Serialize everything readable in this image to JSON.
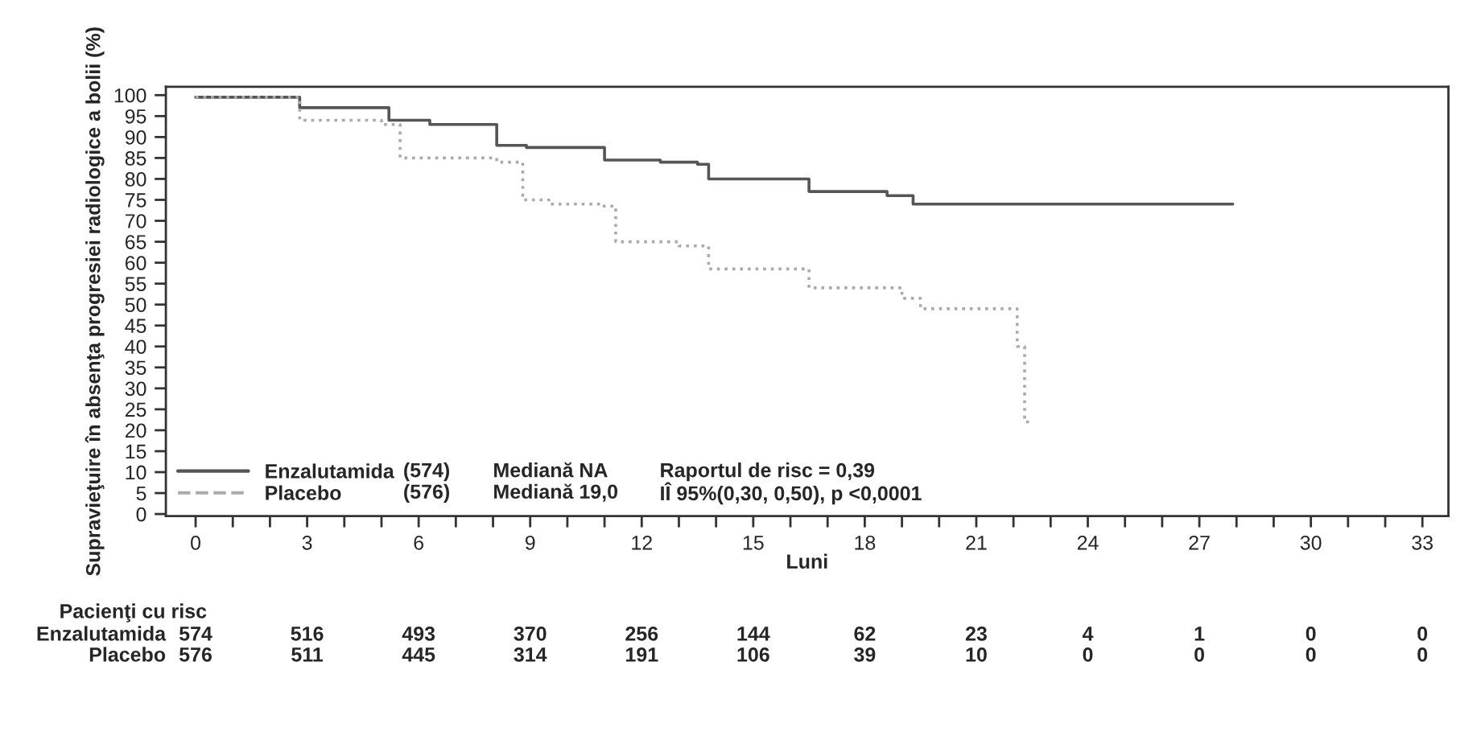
{
  "chart_data": {
    "type": "step",
    "ylabel": "Supravieţuire în absenţa progresiei radiologice a bolii (%)",
    "xlabel": "Luni",
    "xlim": [
      -0.8,
      33.7
    ],
    "ylim": [
      -0.5,
      102
    ],
    "xticks": [
      0,
      {
        "value": 1,
        "label": null
      },
      {
        "value": 2,
        "label": null
      },
      3,
      {
        "value": 4,
        "label": null
      },
      {
        "value": 5,
        "label": null
      },
      6,
      {
        "value": 7,
        "label": null
      },
      {
        "value": 8,
        "label": null
      },
      9,
      {
        "value": 10,
        "label": null
      },
      {
        "value": 11,
        "label": null
      },
      12,
      {
        "value": 13,
        "label": null
      },
      {
        "value": 14,
        "label": null
      },
      15,
      {
        "value": 16,
        "label": null
      },
      {
        "value": 17,
        "label": null
      },
      18,
      {
        "value": 19,
        "label": null
      },
      {
        "value": 20,
        "label": null
      },
      21,
      {
        "value": 22,
        "label": null
      },
      {
        "value": 23,
        "label": null
      },
      24,
      {
        "value": 25,
        "label": null
      },
      {
        "value": 26,
        "label": null
      },
      27,
      {
        "value": 28,
        "label": null
      },
      {
        "value": 29,
        "label": null
      },
      30,
      {
        "value": 31,
        "label": null
      },
      {
        "value": 32,
        "label": null
      },
      33
    ],
    "yticks": [
      0,
      5,
      10,
      15,
      20,
      25,
      30,
      35,
      40,
      45,
      50,
      55,
      60,
      65,
      70,
      75,
      80,
      85,
      90,
      95,
      100
    ],
    "grid": false,
    "legend": "bottom left",
    "series": [
      {
        "name": "Enzalutamida",
        "color": "#555555",
        "line_style": "solid",
        "x": [
          0,
          2.8,
          5.2,
          6.3,
          8.1,
          8.9,
          11.0,
          12.5,
          13.5,
          13.8,
          16.5,
          18.6,
          19.3,
          27.9
        ],
        "values": [
          99.5,
          97,
          94,
          93,
          88,
          87.5,
          84.5,
          84,
          83.5,
          80,
          77,
          76,
          74,
          74
        ]
      },
      {
        "name": "Placebo",
        "color": "#aaaaaa",
        "line_style": "dotted",
        "x": [
          0,
          2.8,
          5.0,
          5.5,
          8.1,
          8.8,
          9.5,
          10.9,
          11.3,
          13.0,
          13.8,
          16.5,
          19.0,
          19.5,
          22.1,
          22.3,
          22.5
        ],
        "values": [
          99.5,
          94,
          93,
          85,
          84,
          75,
          74,
          73.5,
          65,
          64,
          58.5,
          54,
          51.5,
          49,
          40,
          22,
          22
        ]
      }
    ],
    "annotations": [
      "(574)",
      "Mediană NA",
      "Raportul de risc = 0,39",
      "(576)",
      "Mediană 19,0",
      "IÎ 95%(0,30, 0,50), p <0,0001",
      "Pacienţi cu risc",
      "Enzalutamida",
      "574",
      "516",
      "493",
      "370",
      "256",
      "144",
      "62",
      "23",
      "4",
      "1",
      "0",
      "0",
      "Placebo",
      "576",
      "511",
      "445",
      "314",
      "191",
      "106",
      "39",
      "10",
      "0",
      "0",
      "0",
      "0"
    ]
  }
}
